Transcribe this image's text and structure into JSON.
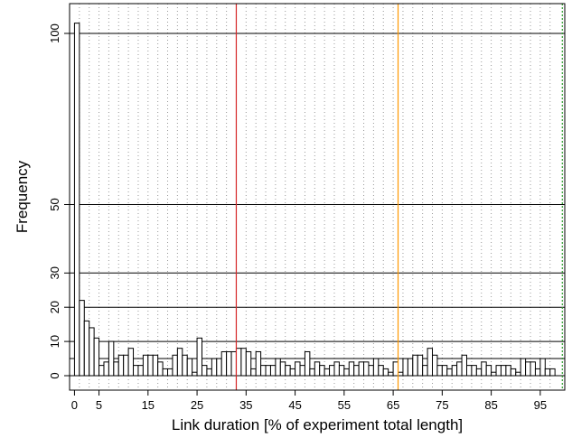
{
  "chart_data": {
    "type": "bar",
    "title": "",
    "xlabel": "Link duration [% of experiment total length]",
    "ylabel": "Frequency",
    "xlim": [
      -1,
      100
    ],
    "ylim": [
      0,
      103
    ],
    "x_ticks": [
      0,
      5,
      15,
      25,
      35,
      45,
      55,
      65,
      75,
      85,
      95
    ],
    "y_ticks": [
      0,
      10,
      20,
      30,
      50,
      100
    ],
    "y_gridlines": [
      0,
      5,
      10,
      20,
      30,
      50,
      100
    ],
    "x_gridlines_dotted": [
      1,
      3,
      5,
      7,
      9,
      11,
      13,
      15,
      17,
      19,
      21,
      23,
      25,
      27,
      29,
      31,
      33,
      35,
      37,
      39,
      41,
      43,
      45,
      47,
      49,
      51,
      53,
      55,
      57,
      59,
      61,
      63,
      65,
      67,
      69,
      71,
      73,
      75,
      77,
      79,
      81,
      83,
      85,
      87,
      89,
      91,
      93,
      95,
      97
    ],
    "vertical_lines": [
      {
        "x": 33,
        "color": "#d62728"
      },
      {
        "x": 66,
        "color": "#ff9900"
      },
      {
        "x": 99.5,
        "color": "#2ca02c",
        "style": "dotted"
      }
    ],
    "bin_width": 1,
    "bin_start": 0,
    "values": [
      103,
      22,
      16,
      14,
      11,
      3,
      4,
      10,
      4,
      6,
      6,
      8,
      3,
      3,
      6,
      6,
      6,
      4,
      2,
      2,
      6,
      8,
      6,
      5,
      1,
      11,
      3,
      2,
      5,
      5,
      7,
      7,
      7,
      8,
      8,
      7,
      2,
      7,
      3,
      3,
      3,
      5,
      4,
      3,
      2,
      4,
      3,
      7,
      2,
      4,
      3,
      2,
      3,
      4,
      3,
      2,
      4,
      3,
      4,
      4,
      3,
      5,
      3,
      2,
      1,
      4,
      1,
      5,
      5,
      6,
      6,
      3,
      8,
      6,
      3,
      3,
      2,
      3,
      4,
      6,
      3,
      3,
      2,
      4,
      3,
      1,
      3,
      3,
      3,
      2,
      1,
      5,
      4,
      4,
      2,
      5,
      2,
      2
    ],
    "bar_fill": "#ffffff",
    "bar_stroke": "#000000"
  }
}
